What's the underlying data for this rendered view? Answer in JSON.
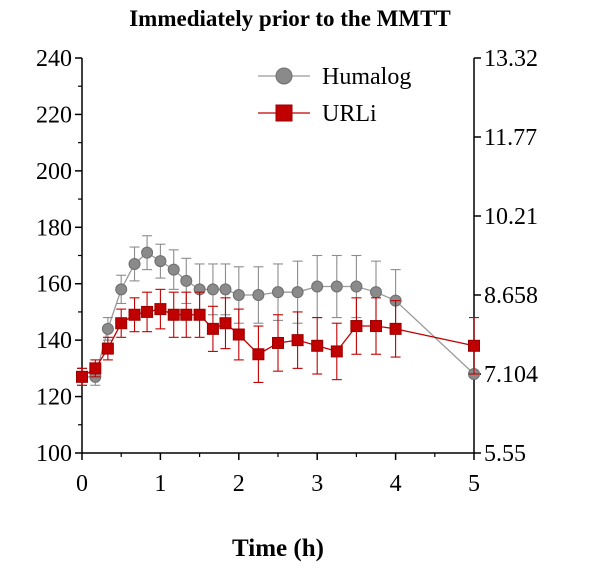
{
  "chart_data": {
    "type": "line",
    "title": "Immediately prior to the MMTT",
    "xlabel": "Time (h)",
    "ylabel": "",
    "xlim": [
      0,
      5
    ],
    "ylim": [
      100,
      240
    ],
    "x_ticks": [
      "0",
      "1",
      "2",
      "3",
      "4",
      "5"
    ],
    "y_ticks": [
      "100",
      "120",
      "140",
      "160",
      "180",
      "200",
      "220",
      "240"
    ],
    "y2_ticks": [
      "5.55",
      "7.104",
      "8.658",
      "10.21",
      "11.77",
      "13.32"
    ],
    "y2_tick_values": [
      100,
      128,
      156,
      184,
      212,
      240
    ],
    "legend_position": "top-right",
    "series": [
      {
        "name": "Humalog",
        "color": "#8c8c8c",
        "marker": "circle",
        "x": [
          0,
          0.17,
          0.33,
          0.5,
          0.67,
          0.83,
          1.0,
          1.17,
          1.33,
          1.5,
          1.67,
          1.83,
          2.0,
          2.25,
          2.5,
          2.75,
          3.0,
          3.25,
          3.5,
          3.75,
          4.0,
          5.0
        ],
        "y": [
          127,
          127,
          144,
          158,
          167,
          171,
          168,
          165,
          161,
          158,
          158,
          158,
          156,
          156,
          157,
          157,
          159,
          159,
          159,
          157,
          154,
          128
        ],
        "err": [
          3,
          3,
          4,
          5,
          6,
          6,
          6,
          7,
          8,
          9,
          9,
          9,
          10,
          10,
          10,
          11,
          11,
          11,
          11,
          11,
          11,
          0
        ]
      },
      {
        "name": "URLi",
        "color": "#c00000",
        "marker": "square",
        "x": [
          0,
          0.17,
          0.33,
          0.5,
          0.67,
          0.83,
          1.0,
          1.17,
          1.33,
          1.5,
          1.67,
          1.83,
          2.0,
          2.25,
          2.5,
          2.75,
          3.0,
          3.25,
          3.5,
          3.75,
          4.0,
          5.0
        ],
        "y": [
          127,
          130,
          137,
          146,
          149,
          150,
          151,
          149,
          149,
          149,
          144,
          146,
          142,
          135,
          139,
          140,
          138,
          136,
          145,
          145,
          144,
          138
        ],
        "err": [
          3,
          3,
          4,
          5,
          6,
          7,
          7,
          8,
          8,
          8,
          8,
          9,
          9,
          10,
          10,
          10,
          10,
          10,
          10,
          10,
          10,
          10
        ]
      }
    ]
  }
}
